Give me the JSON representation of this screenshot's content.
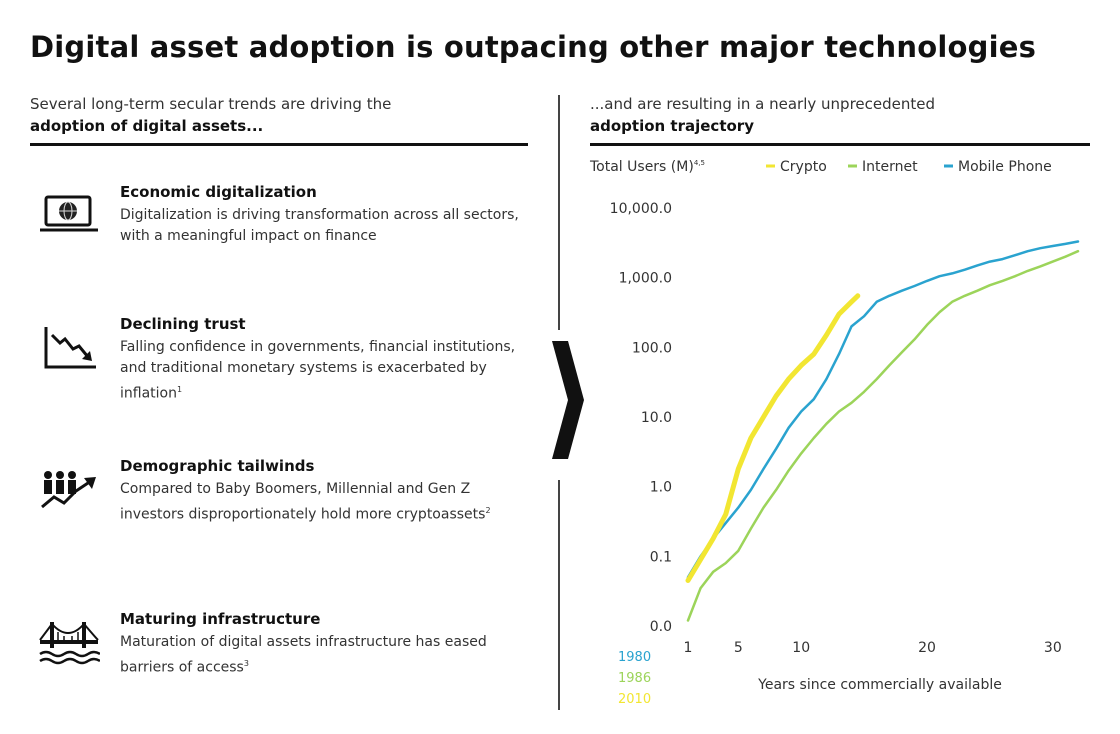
{
  "title": "Digital asset adoption is outpacing other major technologies",
  "left_intro": {
    "line1": "Several long-term secular trends are driving the",
    "line2_bold": "adoption of digital assets..."
  },
  "right_intro": {
    "line1": "...and are resulting in a nearly unprecedented",
    "line2_bold": "adoption trajectory"
  },
  "trends": [
    {
      "icon": "laptop-globe-icon",
      "heading": "Economic digitalization",
      "description": "Digitalization is driving transformation across all sectors, with a meaningful impact on finance",
      "note": ""
    },
    {
      "icon": "declining-chart-icon",
      "heading": "Declining trust",
      "description": "Falling confidence in governments, financial institutions, and traditional monetary systems is exacerbated by inflation",
      "note": "1"
    },
    {
      "icon": "people-growth-icon",
      "heading": "Demographic tailwinds",
      "description": "Compared to Baby Boomers, Millennial and Gen Z investors disproportionately hold more cryptoassets",
      "note": "2"
    },
    {
      "icon": "bridge-icon",
      "heading": "Maturing infrastructure",
      "description": "Maturation of digital assets infrastructure has eased barriers of access",
      "note": "3"
    }
  ],
  "chevron_icon": "chevron-right-icon",
  "colors": {
    "crypto": "#f2e632",
    "internet": "#9cd45a",
    "mobile": "#2aa3cf",
    "text": "#1a1a1a"
  },
  "chart_data": {
    "type": "line",
    "title": "",
    "ylabel": "Total Users (M)",
    "ylabel_sup": "4,5",
    "xlabel": "Years since commercially available",
    "y_scale": "log",
    "ylim": [
      0.01,
      10000
    ],
    "y_ticks": [
      0.01,
      0.1,
      1,
      10,
      100,
      1000,
      10000
    ],
    "y_tick_labels": [
      "0.0",
      "0.1",
      "1.0",
      "10.0",
      "100.0",
      "1,000.0",
      "10,000.0"
    ],
    "xlim": [
      1,
      32
    ],
    "x_ticks": [
      1,
      5,
      10,
      20,
      30
    ],
    "x_tick_labels": [
      "1",
      "5",
      "10",
      "20",
      "30"
    ],
    "legend_position": "top",
    "start_years": [
      {
        "series": "Mobile Phone",
        "label": "1980"
      },
      {
        "series": "Internet",
        "label": "1986"
      },
      {
        "series": "Crypto",
        "label": "2010"
      }
    ],
    "series": [
      {
        "name": "Crypto",
        "color": "#f2e632",
        "x": [
          1,
          2,
          3,
          4,
          5,
          6,
          7,
          8,
          9,
          10,
          11,
          12,
          13,
          14,
          14.5
        ],
        "y": [
          0.045,
          0.09,
          0.18,
          0.4,
          1.8,
          5,
          10,
          20,
          35,
          55,
          80,
          150,
          300,
          450,
          550
        ]
      },
      {
        "name": "Internet",
        "color": "#9cd45a",
        "x": [
          1,
          2,
          3,
          4,
          5,
          6,
          7,
          8,
          9,
          10,
          11,
          12,
          13,
          14,
          15,
          16,
          17,
          18,
          19,
          20,
          21,
          22,
          23,
          24,
          25,
          26,
          27,
          28,
          29,
          30,
          31,
          32
        ],
        "y": [
          0.012,
          0.035,
          0.06,
          0.08,
          0.12,
          0.25,
          0.5,
          0.9,
          1.7,
          3,
          5,
          8,
          12,
          16,
          23,
          35,
          55,
          85,
          130,
          210,
          320,
          450,
          550,
          650,
          780,
          900,
          1050,
          1250,
          1450,
          1700,
          2000,
          2400
        ]
      },
      {
        "name": "Mobile Phone",
        "color": "#2aa3cf",
        "x": [
          1,
          2,
          3,
          4,
          5,
          6,
          7,
          8,
          9,
          10,
          11,
          12,
          13,
          14,
          15,
          16,
          17,
          18,
          19,
          20,
          21,
          22,
          23,
          24,
          25,
          26,
          27,
          28,
          29,
          30,
          31,
          32
        ],
        "y": [
          0.05,
          0.1,
          0.18,
          0.3,
          0.5,
          0.9,
          1.8,
          3.5,
          7,
          12,
          18,
          35,
          80,
          200,
          280,
          450,
          550,
          650,
          760,
          900,
          1050,
          1150,
          1300,
          1500,
          1700,
          1850,
          2100,
          2400,
          2650,
          2850,
          3050,
          3300
        ]
      }
    ]
  }
}
